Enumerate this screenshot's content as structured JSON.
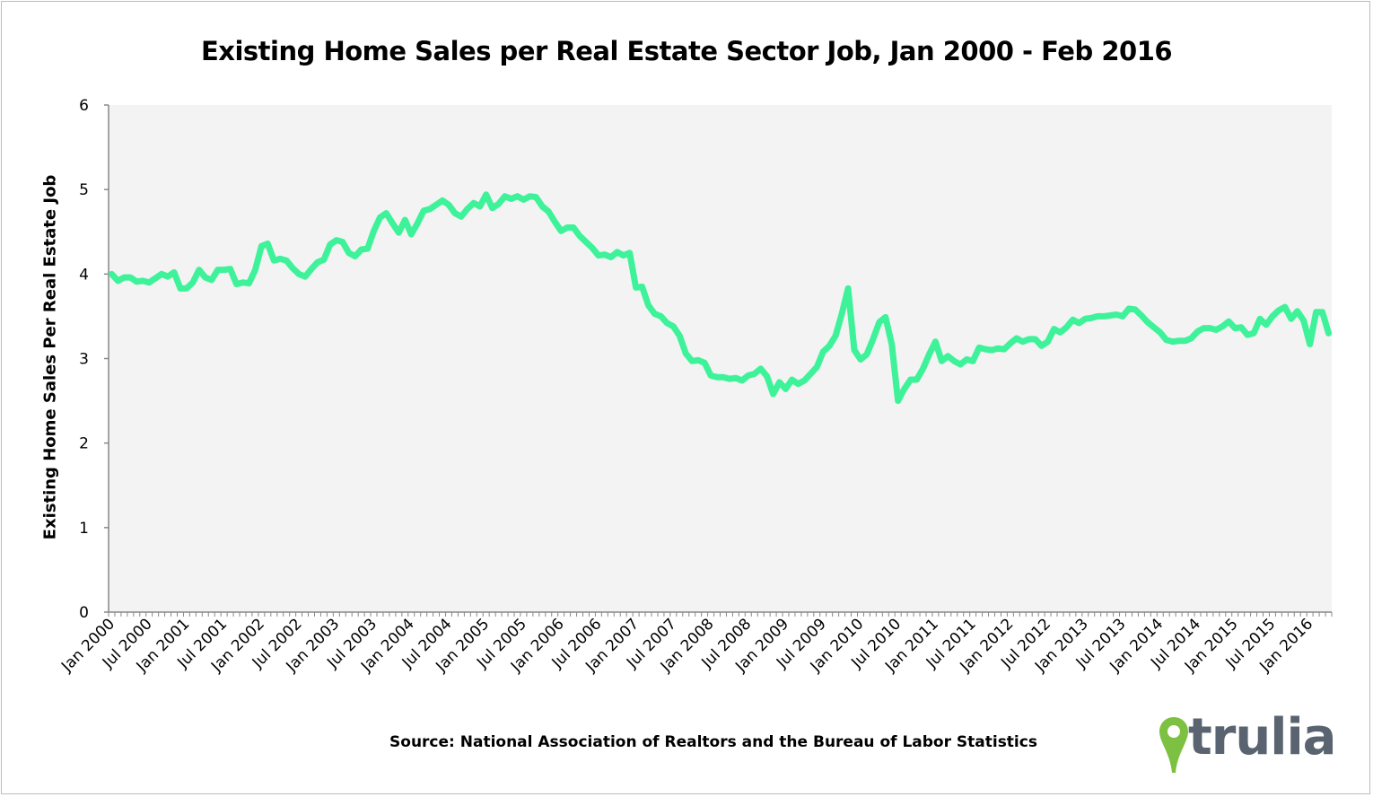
{
  "chart_data": {
    "type": "line",
    "title": "Existing Home Sales per Real Estate Sector Job, Jan 2000 - Feb 2016",
    "ylabel": "Existing Home Sales Per Real Estate Job",
    "xlabel": "",
    "source": "Source: National Association of Realtors and the Bureau of Labor Statistics",
    "logo_text": "trulia",
    "ylim": [
      0,
      6
    ],
    "yticks": [
      0,
      1,
      2,
      3,
      4,
      5,
      6
    ],
    "x_start": "Jan 2000",
    "x_end": "Feb 2016",
    "xtick_labels": [
      "Jan 2000",
      "Jul 2000",
      "Jan 2001",
      "Jul 2001",
      "Jan 2002",
      "Jul 2002",
      "Jan 2003",
      "Jul 2003",
      "Jan 2004",
      "Jul 2004",
      "Jan 2005",
      "Jul 2005",
      "Jan 2006",
      "Jul 2006",
      "Jan 2007",
      "Jul 2007",
      "Jan 2008",
      "Jul 2008",
      "Jan 2009",
      "Jul 2009",
      "Jan 2010",
      "Jul 2010",
      "Jan 2011",
      "Jul 2011",
      "Jan 2012",
      "Jul 2012",
      "Jan 2013",
      "Jul 2013",
      "Jan 2014",
      "Jul 2014",
      "Jan 2015",
      "Jul 2015",
      "Jan 2016"
    ],
    "grid": false,
    "legend": "none",
    "colors": {
      "line": "#3ef29a",
      "plot_bg": "#f3f3f3",
      "logo_pin": "#7cc142",
      "logo_text": "#5a6470"
    },
    "series": [
      {
        "values": [
          4.0,
          3.92,
          3.96,
          3.96,
          3.91,
          3.92,
          3.9,
          3.95,
          4.0,
          3.97,
          4.02,
          3.83,
          3.83,
          3.9,
          4.05,
          3.96,
          3.93,
          4.05,
          4.05,
          4.06,
          3.88,
          3.9,
          3.89,
          4.05,
          4.33,
          4.36,
          4.16,
          4.18,
          4.16,
          4.07,
          4.0,
          3.97,
          4.06,
          4.14,
          4.17,
          4.35,
          4.4,
          4.38,
          4.25,
          4.21,
          4.29,
          4.3,
          4.51,
          4.67,
          4.72,
          4.6,
          4.49,
          4.64,
          4.47,
          4.6,
          4.75,
          4.77,
          4.82,
          4.87,
          4.82,
          4.72,
          4.68,
          4.77,
          4.84,
          4.8,
          4.94,
          4.78,
          4.83,
          4.92,
          4.89,
          4.92,
          4.88,
          4.92,
          4.91,
          4.8,
          4.74,
          4.62,
          4.51,
          4.55,
          4.55,
          4.45,
          4.38,
          4.31,
          4.22,
          4.23,
          4.2,
          4.26,
          4.22,
          4.25,
          3.84,
          3.85,
          3.63,
          3.53,
          3.5,
          3.42,
          3.38,
          3.27,
          3.06,
          2.97,
          2.98,
          2.95,
          2.8,
          2.78,
          2.78,
          2.76,
          2.77,
          2.74,
          2.8,
          2.82,
          2.88,
          2.79,
          2.58,
          2.72,
          2.64,
          2.75,
          2.7,
          2.74,
          2.82,
          2.9,
          3.08,
          3.15,
          3.27,
          3.53,
          3.83,
          3.1,
          2.99,
          3.05,
          3.23,
          3.43,
          3.49,
          3.17,
          2.5,
          2.64,
          2.75,
          2.75,
          2.88,
          3.05,
          3.2,
          2.97,
          3.03,
          2.97,
          2.93,
          2.99,
          2.97,
          3.13,
          3.11,
          3.1,
          3.12,
          3.11,
          3.18,
          3.24,
          3.2,
          3.23,
          3.23,
          3.15,
          3.2,
          3.35,
          3.31,
          3.37,
          3.46,
          3.42,
          3.47,
          3.48,
          3.5,
          3.5,
          3.51,
          3.52,
          3.5,
          3.59,
          3.58,
          3.51,
          3.43,
          3.37,
          3.31,
          3.22,
          3.2,
          3.21,
          3.21,
          3.24,
          3.32,
          3.36,
          3.36,
          3.34,
          3.38,
          3.44,
          3.36,
          3.37,
          3.28,
          3.3,
          3.47,
          3.4,
          3.5,
          3.57,
          3.61,
          3.47,
          3.56,
          3.45,
          3.17,
          3.55,
          3.55,
          3.3
        ]
      }
    ]
  }
}
